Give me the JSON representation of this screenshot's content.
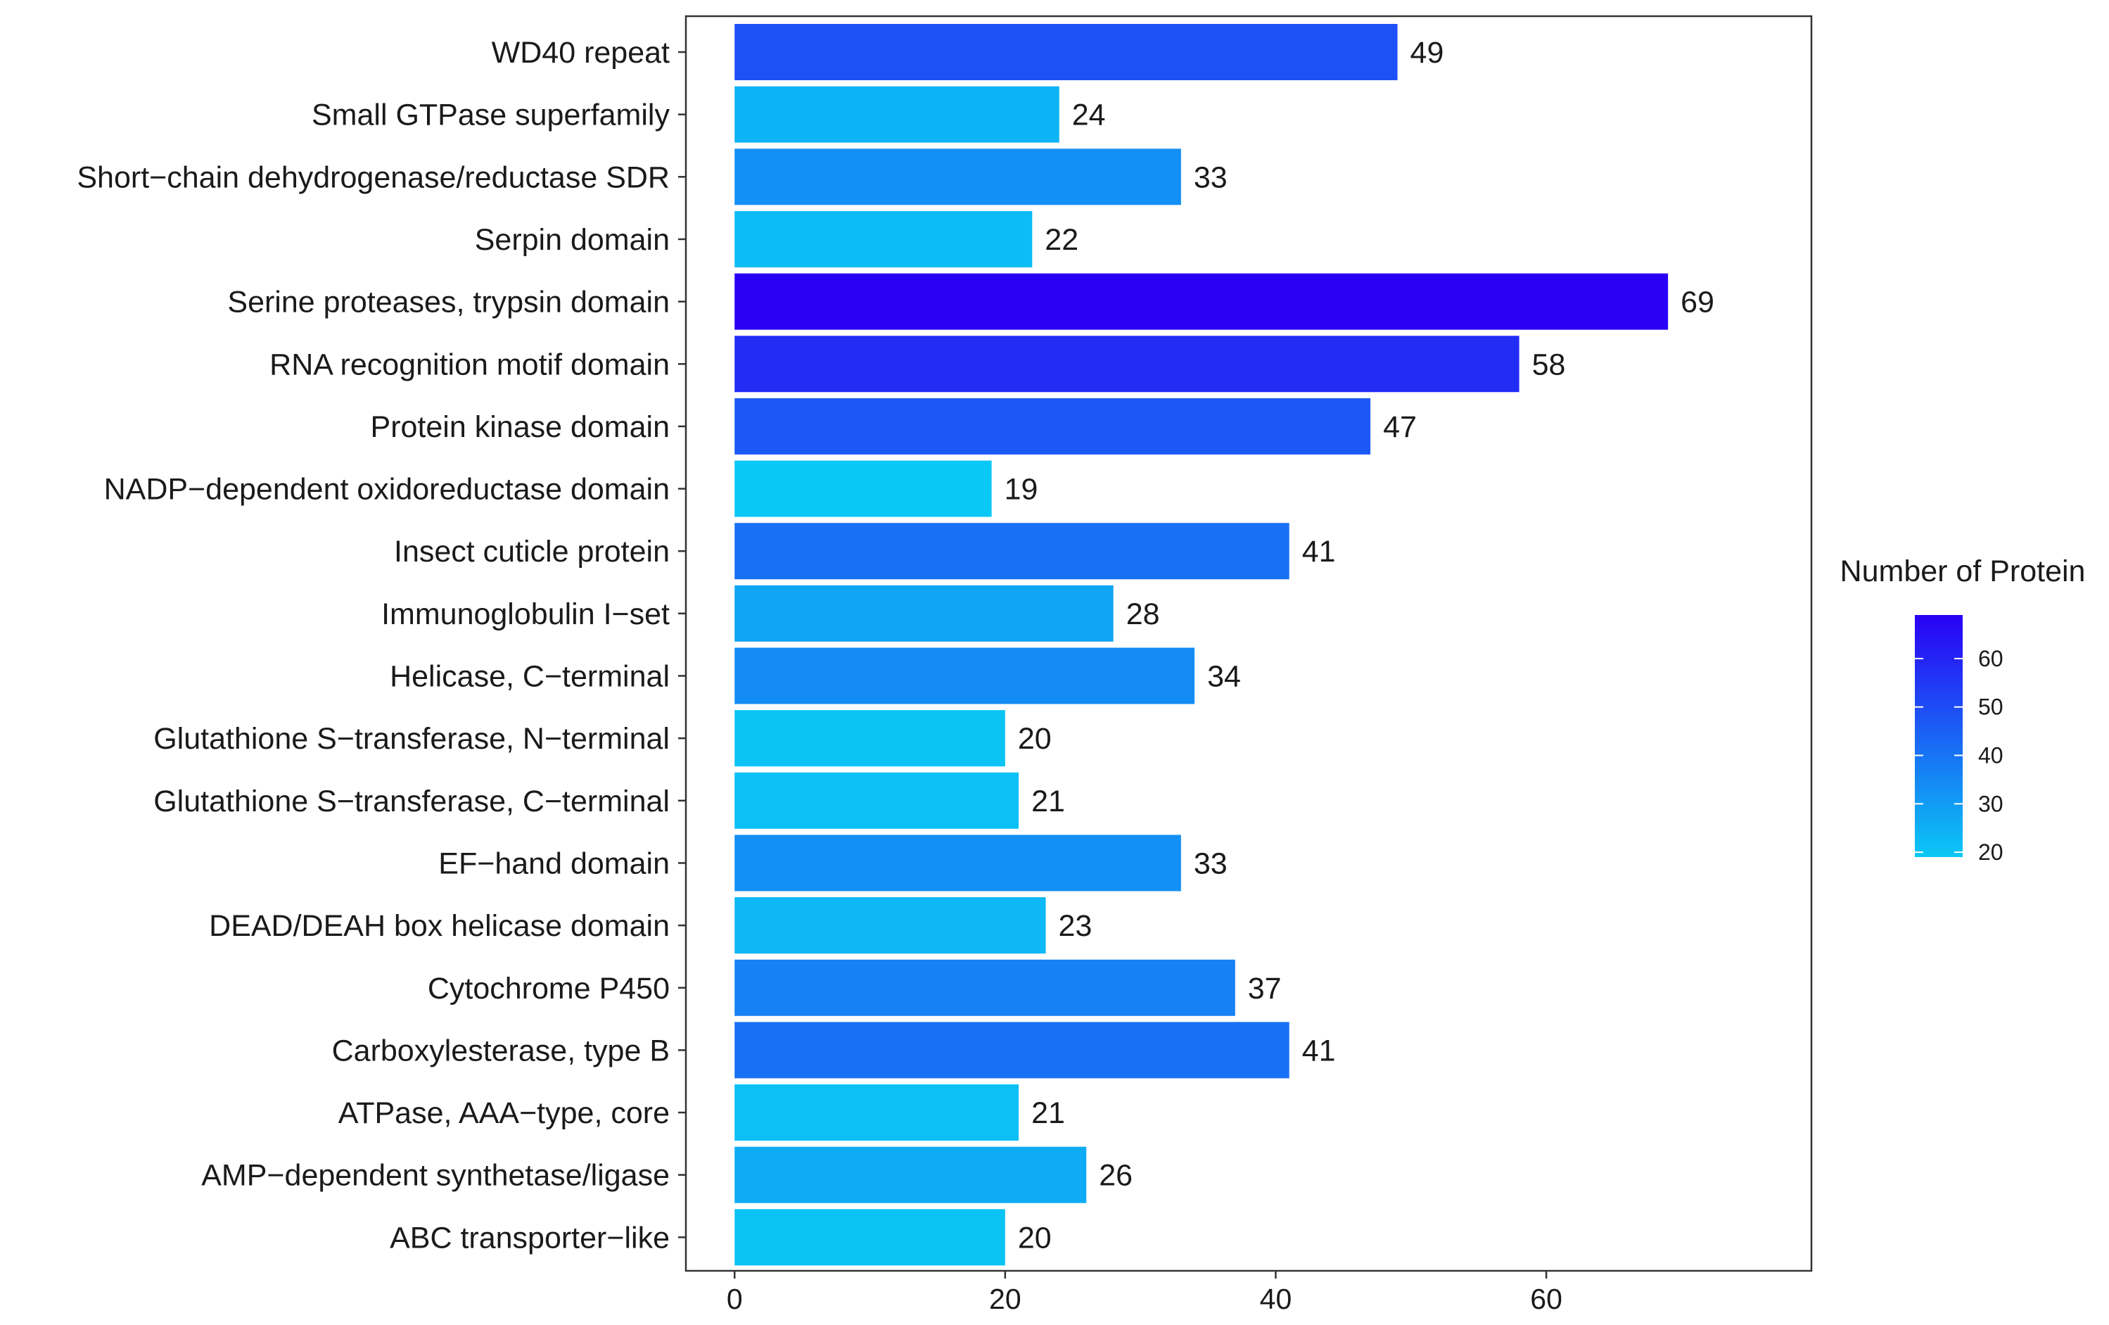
{
  "chart_data": {
    "type": "bar",
    "orientation": "horizontal",
    "categories": [
      "WD40 repeat",
      "Small GTPase superfamily",
      "Short−chain dehydrogenase/reductase SDR",
      "Serpin domain",
      "Serine proteases, trypsin domain",
      "RNA recognition motif domain",
      "Protein kinase domain",
      "NADP−dependent oxidoreductase domain",
      "Insect cuticle protein",
      "Immunoglobulin I−set",
      "Helicase, C−terminal",
      "Glutathione S−transferase, N−terminal",
      "Glutathione S−transferase, C−terminal",
      "EF−hand domain",
      "DEAD/DEAH box helicase domain",
      "Cytochrome P450",
      "Carboxylesterase, type B",
      "ATPase, AAA−type, core",
      "AMP−dependent synthetase/ligase",
      "ABC transporter−like"
    ],
    "values": [
      49,
      24,
      33,
      22,
      69,
      58,
      47,
      19,
      41,
      28,
      34,
      20,
      21,
      33,
      23,
      37,
      41,
      21,
      26,
      20
    ],
    "xlim": [
      -3.6,
      79.6
    ],
    "x_ticks": [
      0,
      20,
      40,
      60
    ],
    "xlabel": "",
    "ylabel": "",
    "grid": false,
    "color_scale": {
      "title": "Number of Protein",
      "low_value": 19,
      "high_value": 69,
      "low_color": "#0ac8f5",
      "high_color": "#2a00f5",
      "ticks": [
        20,
        30,
        40,
        50,
        60
      ]
    },
    "legend_position": "right"
  }
}
